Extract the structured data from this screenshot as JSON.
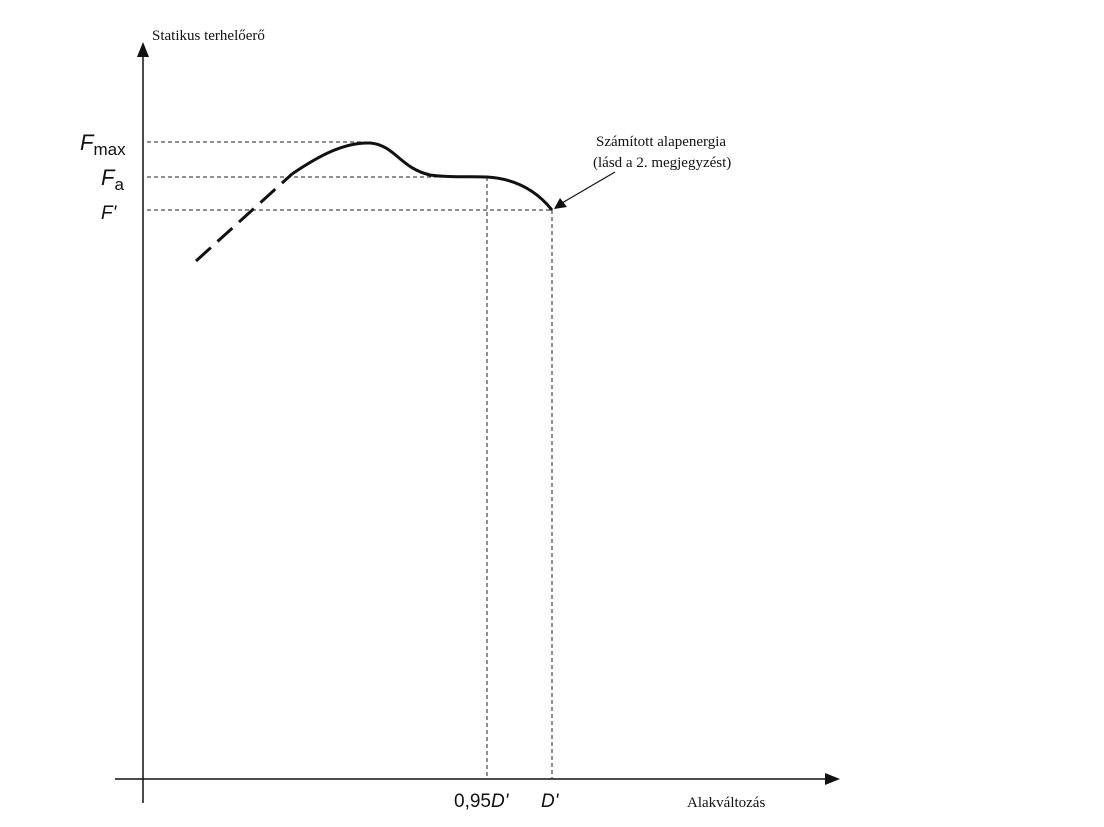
{
  "axes": {
    "y_label": "Statikus terhelőerő",
    "x_label": "Alakváltozás"
  },
  "y_marks": [
    {
      "symbol": "F",
      "subscript": "max"
    },
    {
      "symbol": "F",
      "subscript": "a"
    },
    {
      "symbol": "F'"
    }
  ],
  "x_marks": [
    {
      "prefix": "0,95",
      "symbol": "D'"
    },
    {
      "symbol": "D'"
    }
  ],
  "annotation": {
    "lines": [
      "Számított alapenergia",
      "(lásd a 2. megjegyzést)"
    ]
  }
}
